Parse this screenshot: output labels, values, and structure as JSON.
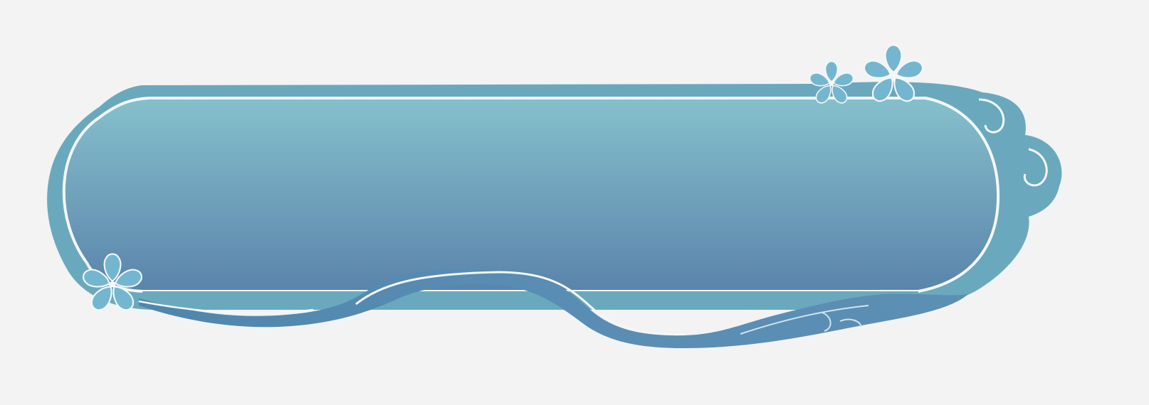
{
  "banner": {
    "decoration": "floral-cloud-frame",
    "flower_icon": "flower-icon",
    "cloud_icon": "cloud-swirl-icon",
    "ribbon_icon": "ribbon-icon"
  },
  "colors": {
    "background": "#f3f3f3",
    "frame_outer": "#6aa9bd",
    "panel_top": "#86c0cc",
    "panel_bottom": "#5a84ab",
    "outline": "#f4f7f8",
    "ribbon": "#5d8cb2",
    "flower": "#74b6cf"
  }
}
